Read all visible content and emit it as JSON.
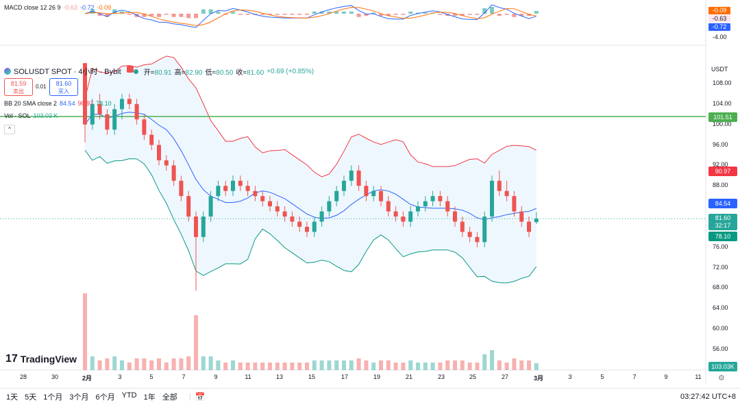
{
  "macd": {
    "label": "MACD close 12 26 9",
    "v1": "-0.63",
    "v2": "-0.72",
    "v3": "-0.09",
    "pill_hist": "-0.09",
    "pill_macd": "-0.63",
    "pill_signal": "-0.72",
    "axis_label": "-4.00"
  },
  "header": {
    "symbol": "SOLUSDT SPOT · 4小时 · Bybit",
    "open_label": "开=",
    "open": "80.91",
    "high_label": "高=",
    "high": "82.90",
    "low_label": "低=",
    "low": "80.50",
    "close_label": "收=",
    "close": "81.60",
    "change": "+0.69 (+0.85%)"
  },
  "trade": {
    "sell_price": "81.59",
    "sell_label": "卖出",
    "spread": "0.01",
    "buy_price": "81.60",
    "buy_label": "买入"
  },
  "bb": {
    "label": "BB 20 SMA close 2",
    "basis": "84.54",
    "upper": "90.97",
    "lower": "78.10"
  },
  "vol": {
    "label": "Vol · SOL",
    "value": "103.03 K"
  },
  "price_axis": {
    "currency": "USDT",
    "ticks": [
      "108.00",
      "104.00",
      "100.00",
      "96.00",
      "92.00",
      "88.00",
      "76.00",
      "72.00",
      "68.00",
      "64.00",
      "60.00",
      "56.00"
    ]
  },
  "pills": {
    "hline": "101.51",
    "upper": "90.97",
    "basis": "84.54",
    "last": "81.60",
    "countdown": "32:17",
    "lower": "78.10",
    "volume": "103.03K"
  },
  "x_axis": [
    "28",
    "30",
    "2月",
    "3",
    "5",
    "7",
    "9",
    "11",
    "13",
    "15",
    "17",
    "19",
    "21",
    "23",
    "25",
    "27",
    "3月",
    "3",
    "5",
    "7",
    "9",
    "11"
  ],
  "logo": "TradingView",
  "bottom": {
    "ranges": [
      "1天",
      "5天",
      "1个月",
      "3个月",
      "6个月",
      "YTD",
      "1年",
      "全部"
    ],
    "time": "03:27:42 UTC+8"
  },
  "colors": {
    "up": "#26a69a",
    "down": "#ef5350",
    "basis": "#2962ff",
    "upper": "#f23645",
    "lower": "#089981",
    "hline": "#4caf50",
    "macd_line": "#2962ff",
    "signal_line": "#ff6d00"
  },
  "chart_data": {
    "type": "candlestick",
    "candles": [
      [
        112,
        112,
        96.5,
        100
      ],
      [
        100,
        105,
        99,
        104
      ],
      [
        104,
        106,
        101,
        102
      ],
      [
        102,
        103,
        98,
        99
      ],
      [
        99,
        104,
        98,
        103
      ],
      [
        103,
        106,
        101,
        105
      ],
      [
        105,
        106,
        103,
        104
      ],
      [
        104,
        105,
        100,
        101
      ],
      [
        101,
        102,
        97,
        98
      ],
      [
        98,
        99,
        95,
        96
      ],
      [
        96,
        97,
        92,
        93
      ],
      [
        93,
        94,
        91,
        92
      ],
      [
        92,
        93,
        88,
        89
      ],
      [
        89,
        90,
        85,
        86
      ],
      [
        86,
        87,
        81,
        82
      ],
      [
        82,
        83,
        67.5,
        78
      ],
      [
        78,
        83,
        77,
        82
      ],
      [
        82,
        87,
        81,
        86
      ],
      [
        86,
        89,
        85,
        88
      ],
      [
        88,
        89,
        86,
        87
      ],
      [
        87,
        90,
        86,
        89
      ],
      [
        89,
        90,
        87,
        88
      ],
      [
        88,
        89,
        86,
        87
      ],
      [
        87,
        88,
        85,
        86
      ],
      [
        86,
        87,
        84,
        85
      ],
      [
        85,
        86,
        83,
        84
      ],
      [
        84,
        85,
        82,
        83
      ],
      [
        83,
        84,
        81,
        82
      ],
      [
        82,
        83,
        80,
        81
      ],
      [
        81,
        82,
        79,
        80
      ],
      [
        80,
        81,
        78,
        79
      ],
      [
        79,
        82,
        78,
        81
      ],
      [
        81,
        84,
        80,
        83
      ],
      [
        83,
        86,
        82,
        85
      ],
      [
        85,
        88,
        84,
        87
      ],
      [
        87,
        90,
        86,
        89
      ],
      [
        89,
        92,
        88,
        91
      ],
      [
        91,
        92,
        87,
        88
      ],
      [
        88,
        89,
        85,
        86
      ],
      [
        86,
        88,
        85,
        87
      ],
      [
        87,
        88,
        84,
        85
      ],
      [
        85,
        86,
        82,
        83
      ],
      [
        83,
        84,
        81,
        82
      ],
      [
        82,
        83,
        80,
        81
      ],
      [
        81,
        84,
        80,
        83
      ],
      [
        83,
        85,
        82,
        84
      ],
      [
        84,
        86,
        83,
        85
      ],
      [
        85,
        87,
        84,
        86
      ],
      [
        86,
        87,
        84,
        85
      ],
      [
        85,
        86,
        82,
        83
      ],
      [
        83,
        84,
        80,
        81
      ],
      [
        81,
        82,
        78,
        79
      ],
      [
        79,
        80,
        77,
        78
      ],
      [
        78,
        79,
        76,
        77
      ],
      [
        77,
        83,
        76,
        82
      ],
      [
        82,
        90,
        81,
        89
      ],
      [
        89,
        91,
        86,
        87
      ],
      [
        87,
        89,
        85,
        86
      ],
      [
        86,
        87,
        82,
        83
      ],
      [
        83,
        84,
        80,
        81
      ],
      [
        81,
        82,
        78,
        79
      ],
      [
        80.91,
        82.9,
        80.5,
        81.6
      ]
    ],
    "volume_label": "Vol · SOL",
    "indicator": "BB 20 SMA close 2"
  }
}
